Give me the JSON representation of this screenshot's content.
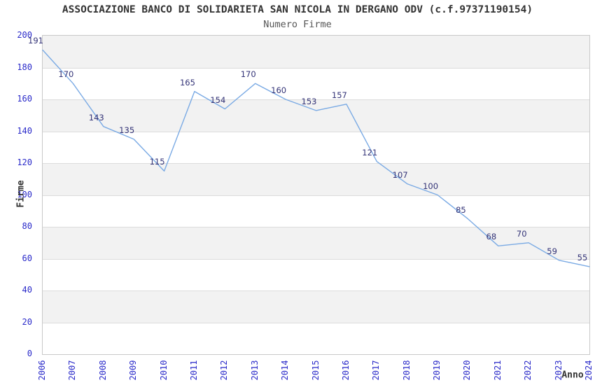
{
  "chart_data": {
    "type": "line",
    "title": "ASSOCIAZIONE BANCO DI SOLIDARIETA SAN NICOLA IN DERGANO ODV (c.f.97371190154)",
    "subtitle": "Numero Firme",
    "xlabel": "Anno",
    "ylabel": "Firme",
    "categories": [
      "2006",
      "2007",
      "2008",
      "2009",
      "2010",
      "2011",
      "2012",
      "2013",
      "2014",
      "2015",
      "2016",
      "2017",
      "2018",
      "2019",
      "2020",
      "2021",
      "2022",
      "2023",
      "2024"
    ],
    "values": [
      191,
      170,
      143,
      135,
      115,
      165,
      154,
      170,
      160,
      153,
      157,
      121,
      107,
      100,
      85,
      68,
      70,
      59,
      55
    ],
    "ylim": [
      0,
      200
    ],
    "ytick_step": 20,
    "grid": "horizontal-bands",
    "legend": "none",
    "show_point_labels": true,
    "colors": {
      "line": "#7aaae4",
      "tick_label": "#2a2ac9",
      "point_label": "#333377",
      "band": "#f2f2f2",
      "gridline": "#dcdcdc",
      "plot_border": "#c9c9c9",
      "title": "#333333",
      "subtitle": "#555555",
      "axis_title": "#333333",
      "background": "#ffffff"
    }
  }
}
